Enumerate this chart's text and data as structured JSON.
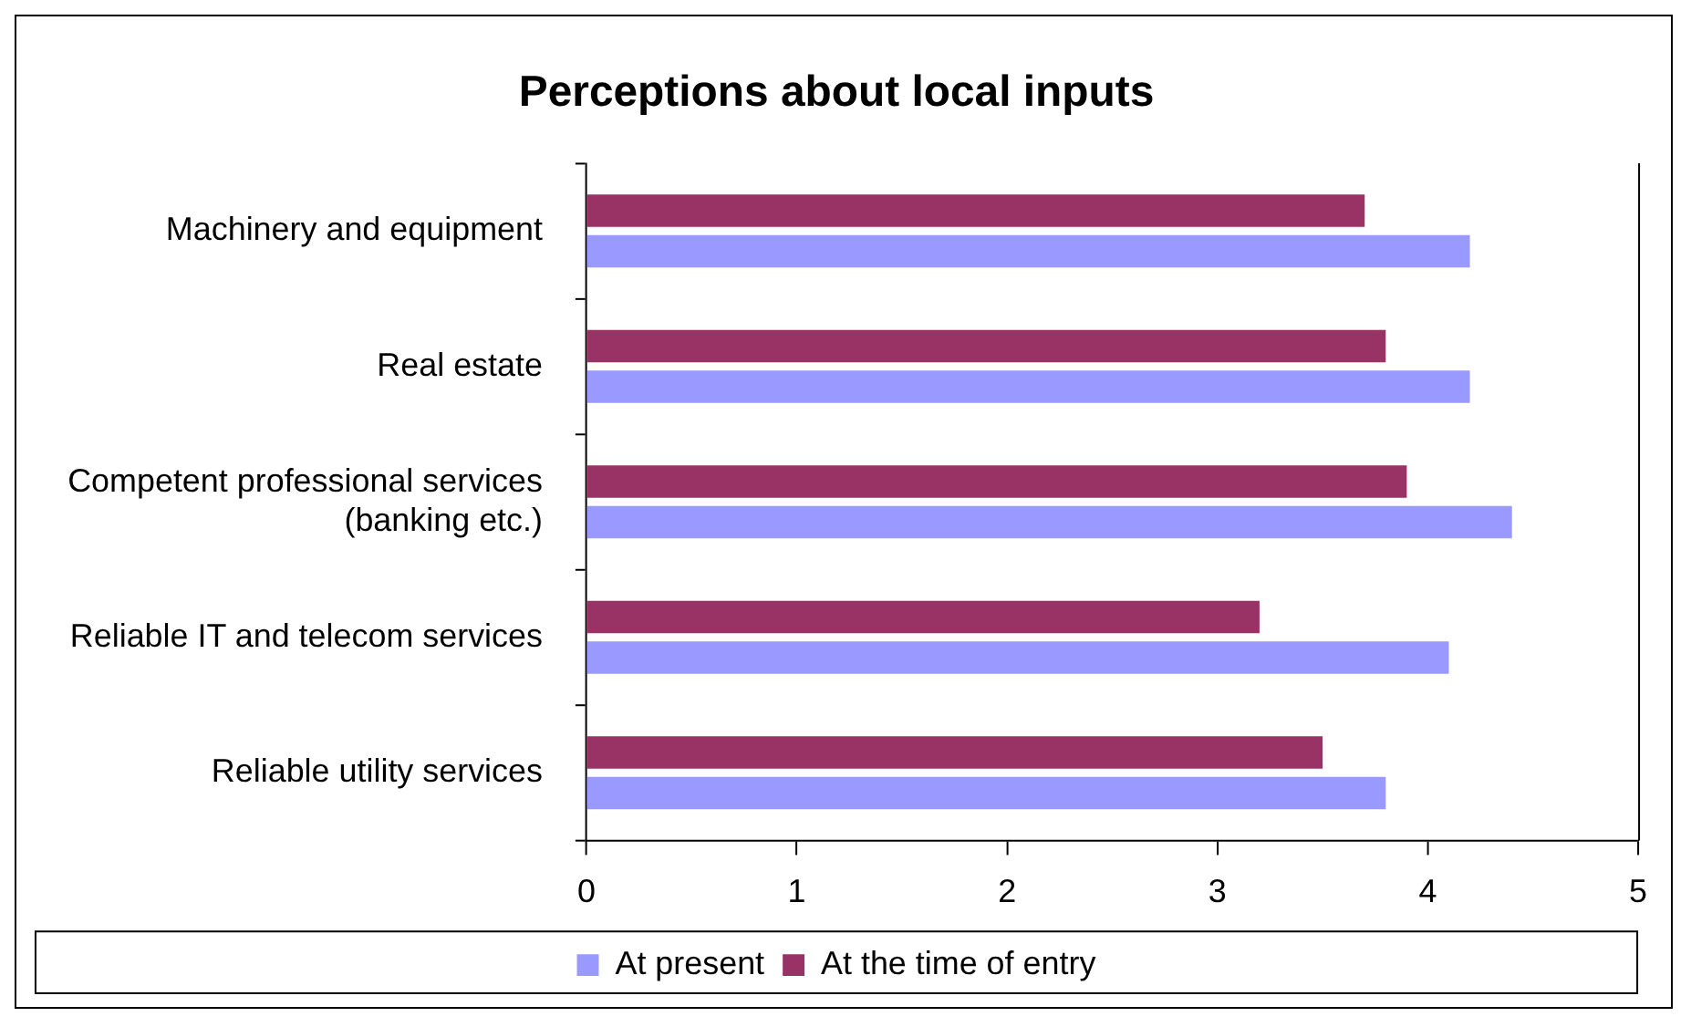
{
  "chart_data": {
    "type": "bar",
    "orientation": "horizontal",
    "title": "Perceptions about local inputs",
    "categories": [
      "Machinery and equipment",
      "Real estate",
      "Competent professional services (banking etc.)",
      "Reliable IT and telecom services",
      "Reliable utility services"
    ],
    "series": [
      {
        "name": "At present",
        "color": "#9999ff",
        "values": [
          4.2,
          4.2,
          4.4,
          4.1,
          3.8
        ]
      },
      {
        "name": "At the time of entry",
        "color": "#993366",
        "values": [
          3.7,
          3.8,
          3.9,
          3.2,
          3.5
        ]
      }
    ],
    "xlim": [
      0,
      5
    ],
    "xticks": [
      0,
      1,
      2,
      3,
      4,
      5
    ],
    "grid": false,
    "legend": "bottom"
  }
}
